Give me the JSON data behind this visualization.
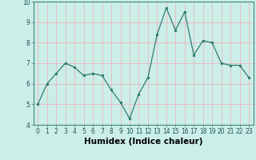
{
  "x": [
    0,
    1,
    2,
    3,
    4,
    5,
    6,
    7,
    8,
    9,
    10,
    11,
    12,
    13,
    14,
    15,
    16,
    17,
    18,
    19,
    20,
    21,
    22,
    23
  ],
  "y": [
    5.0,
    6.0,
    6.5,
    7.0,
    6.8,
    6.4,
    6.5,
    6.4,
    5.7,
    5.1,
    4.3,
    5.5,
    6.3,
    8.4,
    9.7,
    8.6,
    9.5,
    7.4,
    8.1,
    8.0,
    7.0,
    6.9,
    6.9,
    6.3
  ],
  "xlabel": "Humidex (Indice chaleur)",
  "ylim": [
    4,
    10
  ],
  "xlim_min": -0.5,
  "xlim_max": 23.5,
  "yticks": [
    4,
    5,
    6,
    7,
    8,
    9,
    10
  ],
  "xticks": [
    0,
    1,
    2,
    3,
    4,
    5,
    6,
    7,
    8,
    9,
    10,
    11,
    12,
    13,
    14,
    15,
    16,
    17,
    18,
    19,
    20,
    21,
    22,
    23
  ],
  "line_color": "#2e7d6e",
  "marker_color": "#2e7d6e",
  "bg_color": "#cceee8",
  "grid_color": "#e8b8b8",
  "tick_label_fontsize": 5.5,
  "xlabel_fontsize": 7.5,
  "xlabel_fontweight": "bold"
}
